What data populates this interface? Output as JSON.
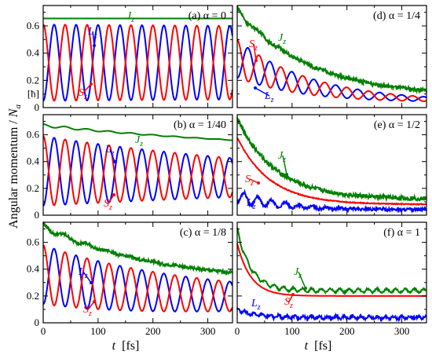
{
  "figure": {
    "ylabel_main": "Angular momentum / ",
    "ylabel_N": "N",
    "ylabel_sub": "a",
    "ylabel_unit": "[ħ]",
    "xlabel_t": "t",
    "xlabel_unit": "[fs]"
  },
  "colors": {
    "Lz": "#0000ff",
    "Sz": "#ff0000",
    "Jz": "#008000"
  },
  "axes": {
    "x_range": [
      0,
      345
    ],
    "y_range": [
      0,
      0.75
    ],
    "x_ticks": [
      "0",
      "100",
      "200",
      "300"
    ],
    "y_ticks": [
      "0",
      "0.2",
      "0.4",
      "0.6"
    ]
  },
  "chart_data": [
    {
      "type": "line",
      "panel": "(a)",
      "alpha": "α = 0",
      "xlim": [
        0,
        345
      ],
      "ylim": [
        0,
        0.75
      ],
      "unit_label": "[ħ]",
      "labels": {
        "L": "L",
        "S": "S",
        "J": "J",
        "sub": "z"
      },
      "series": [
        {
          "name": "Jz",
          "shape": {
            "mean": 0.655,
            "tail": 0.655,
            "tau": 1000,
            "amp": 0.0,
            "amp_decay": 1000,
            "noise": 0.0,
            "period": 40
          }
        },
        {
          "name": "Lz",
          "shape": {
            "mean": 0.33,
            "tail": 0.33,
            "tau": 1000,
            "amp": 0.28,
            "amp_decay": 10000,
            "noise": 0.0,
            "period": 40,
            "phase": 3.14
          }
        },
        {
          "name": "Sz",
          "shape": {
            "mean": 0.33,
            "tail": 0.33,
            "tau": 1000,
            "amp": 0.28,
            "amp_decay": 10000,
            "noise": 0.0,
            "period": 40,
            "phase": 0
          }
        }
      ]
    },
    {
      "type": "line",
      "panel": "(b)",
      "alpha": "α = 1/40",
      "xlim": [
        0,
        345
      ],
      "ylim": [
        0,
        0.75
      ],
      "labels": {
        "L": "L",
        "S": "S",
        "J": "J",
        "sub": "z"
      },
      "series": [
        {
          "name": "Jz",
          "shape": {
            "mean": 0.67,
            "tail": 0.45,
            "tau": 500,
            "amp": 0.01,
            "amp_decay": 200,
            "noise": 0.0,
            "period": 40
          }
        },
        {
          "name": "Lz",
          "shape": {
            "mean": 0.33,
            "tail": 0.23,
            "tau": 500,
            "amp": 0.26,
            "amp_decay": 600,
            "noise": 0.0,
            "period": 40,
            "phase": 3.14
          }
        },
        {
          "name": "Sz",
          "shape": {
            "mean": 0.33,
            "tail": 0.23,
            "tau": 500,
            "amp": 0.26,
            "amp_decay": 600,
            "noise": 0.0,
            "period": 40,
            "phase": 0
          }
        }
      ]
    },
    {
      "type": "line",
      "panel": "(c)",
      "alpha": "α = 1/8",
      "xlim": [
        0,
        345
      ],
      "ylim": [
        0,
        0.75
      ],
      "labels": {
        "L": "L",
        "S": "S",
        "J": "J",
        "sub": "z"
      },
      "series": [
        {
          "name": "Jz",
          "shape": {
            "mean": 0.72,
            "tail": 0.3,
            "tau": 200,
            "amp": 0.02,
            "amp_decay": 100,
            "noise": 0.012,
            "period": 40
          }
        },
        {
          "name": "Lz",
          "shape": {
            "mean": 0.36,
            "tail": 0.16,
            "tau": 200,
            "amp": 0.22,
            "amp_decay": 500,
            "noise": 0.0,
            "period": 40,
            "phase": 3.14
          }
        },
        {
          "name": "Sz",
          "shape": {
            "mean": 0.36,
            "tail": 0.16,
            "tau": 200,
            "amp": 0.22,
            "amp_decay": 500,
            "noise": 0.0,
            "period": 40,
            "phase": 0
          }
        }
      ]
    },
    {
      "type": "line",
      "panel": "(d)",
      "alpha": "α = 1/4",
      "xlim": [
        0,
        345
      ],
      "ylim": [
        0,
        0.75
      ],
      "labels": {
        "L": "L",
        "S": "S",
        "J": "J",
        "sub": "z"
      },
      "series": [
        {
          "name": "Jz",
          "shape": {
            "mean": 0.72,
            "tail": 0.08,
            "tau": 130,
            "amp": 0.02,
            "amp_decay": 60,
            "noise": 0.014,
            "period": 40
          }
        },
        {
          "name": "Lz",
          "shape": {
            "mean": 0.36,
            "tail": 0.04,
            "tau": 130,
            "amp": 0.14,
            "amp_decay": 160,
            "noise": 0.0,
            "period": 40,
            "phase": 3.14
          }
        },
        {
          "name": "Sz",
          "shape": {
            "mean": 0.36,
            "tail": 0.04,
            "tau": 130,
            "amp": 0.14,
            "amp_decay": 160,
            "noise": 0.0,
            "period": 40,
            "phase": 0
          }
        }
      ]
    },
    {
      "type": "line",
      "panel": "(e)",
      "alpha": "α = 1/2",
      "xlim": [
        0,
        345
      ],
      "ylim": [
        0,
        0.75
      ],
      "labels": {
        "L": "L",
        "S": "S",
        "J": "J",
        "sub": "z"
      },
      "series": [
        {
          "name": "Jz",
          "shape": {
            "mean": 0.72,
            "tail": 0.12,
            "tau": 70,
            "amp": 0.0,
            "amp_decay": 60,
            "noise": 0.016,
            "period": 40
          }
        },
        {
          "name": "Sz",
          "shape": {
            "mean": 0.58,
            "tail": 0.08,
            "tau": 60,
            "amp": 0.0,
            "amp_decay": 60,
            "noise": 0.003,
            "period": 40,
            "phase": 0
          }
        },
        {
          "name": "Lz",
          "shape": {
            "mean": 0.14,
            "tail": 0.04,
            "tau": 80,
            "amp": 0.05,
            "amp_decay": 90,
            "noise": 0.01,
            "period": 25,
            "phase": 3.14
          }
        }
      ]
    },
    {
      "type": "line",
      "panel": "(f)",
      "alpha": "α = 1",
      "xlim": [
        0,
        345
      ],
      "ylim": [
        0,
        0.75
      ],
      "labels": {
        "L": "L",
        "S": "S",
        "J": "J",
        "sub": "z"
      },
      "series": [
        {
          "name": "Jz",
          "shape": {
            "mean": 0.7,
            "tail": 0.24,
            "tau": 25,
            "amp": 0.015,
            "amp_decay": 2000,
            "noise": 0.006,
            "period": 17
          }
        },
        {
          "name": "Sz",
          "shape": {
            "mean": 0.59,
            "tail": 0.2,
            "tau": 25,
            "amp": 0.0,
            "amp_decay": 100,
            "noise": 0.0,
            "period": 20,
            "phase": 0
          }
        },
        {
          "name": "Lz",
          "shape": {
            "mean": 0.1,
            "tail": 0.04,
            "tau": 30,
            "amp": 0.01,
            "amp_decay": 2000,
            "noise": 0.01,
            "period": 15,
            "phase": 0
          }
        }
      ]
    }
  ]
}
